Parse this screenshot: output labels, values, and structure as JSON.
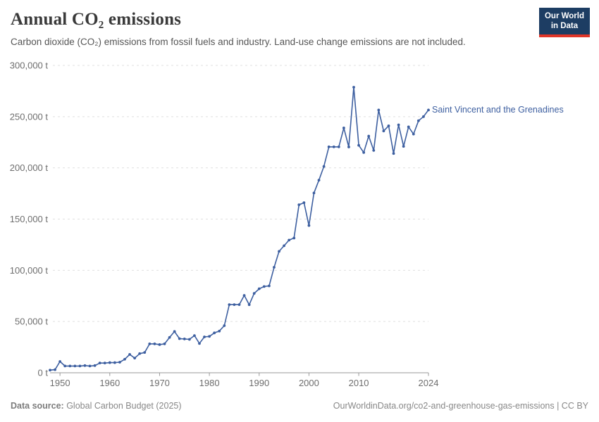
{
  "header": {
    "title": "Annual CO₂ emissions",
    "subtitle": "Carbon dioxide (CO₂) emissions from fossil fuels and industry. Land-use change emissions are not included.",
    "logo_line1": "Our World",
    "logo_line2": "in Data",
    "logo_bg_color": "#1d3d63",
    "logo_bar_color": "#e03629"
  },
  "chart_data": {
    "type": "line",
    "title": "Annual CO₂ emissions",
    "xlabel": "",
    "ylabel": "",
    "unit": "t",
    "grid": true,
    "gridline_style": "dashed",
    "line_color": "#3d5fa0",
    "axis_color": "#9a9a9a",
    "tick_text_color": "#6e6e6e",
    "ylim": [
      0,
      300000
    ],
    "xlim": [
      1948,
      2024
    ],
    "y_ticks": [
      {
        "v": 0,
        "label": "0 t"
      },
      {
        "v": 50000,
        "label": "50,000 t"
      },
      {
        "v": 100000,
        "label": "100,000 t"
      },
      {
        "v": 150000,
        "label": "150,000 t"
      },
      {
        "v": 200000,
        "label": "200,000 t"
      },
      {
        "v": 250000,
        "label": "250,000 t"
      },
      {
        "v": 300000,
        "label": "300,000 t"
      }
    ],
    "x_ticks": [
      {
        "v": 1950,
        "label": "1950"
      },
      {
        "v": 1960,
        "label": "1960"
      },
      {
        "v": 1970,
        "label": "1970"
      },
      {
        "v": 1980,
        "label": "1980"
      },
      {
        "v": 1990,
        "label": "1990"
      },
      {
        "v": 2000,
        "label": "2000"
      },
      {
        "v": 2010,
        "label": "2010"
      },
      {
        "v": 2024,
        "label": "2024"
      }
    ],
    "series": [
      {
        "name": "Saint Vincent and the Grenadines",
        "x": [
          1948,
          1949,
          1950,
          1951,
          1952,
          1953,
          1954,
          1955,
          1956,
          1957,
          1958,
          1959,
          1960,
          1961,
          1962,
          1963,
          1964,
          1965,
          1966,
          1967,
          1968,
          1969,
          1970,
          1971,
          1972,
          1973,
          1974,
          1975,
          1976,
          1977,
          1978,
          1979,
          1980,
          1981,
          1982,
          1983,
          1984,
          1985,
          1986,
          1987,
          1988,
          1989,
          1990,
          1991,
          1992,
          1993,
          1994,
          1995,
          1996,
          1997,
          1998,
          1999,
          2000,
          2001,
          2002,
          2003,
          2004,
          2005,
          2006,
          2007,
          2008,
          2009,
          2010,
          2011,
          2012,
          2013,
          2014,
          2015,
          2016,
          2017,
          2018,
          2019,
          2020,
          2021,
          2022,
          2023,
          2024
        ],
        "values": [
          2600,
          3000,
          11000,
          6600,
          6600,
          6600,
          6600,
          7000,
          6600,
          7000,
          9500,
          9500,
          9900,
          9900,
          10300,
          13200,
          17900,
          14300,
          18700,
          19800,
          28200,
          28200,
          27500,
          28200,
          34500,
          40300,
          33300,
          33000,
          32600,
          36300,
          28600,
          35000,
          35500,
          38900,
          40700,
          46000,
          66500,
          66500,
          66500,
          75500,
          66400,
          77500,
          82000,
          84200,
          84800,
          103000,
          118500,
          124000,
          129500,
          131500,
          164000,
          166000,
          143700,
          175500,
          188000,
          201400,
          220500,
          220500,
          220500,
          239000,
          220400,
          278700,
          222000,
          215000,
          231000,
          217000,
          256500,
          236000,
          241000,
          214000,
          242000,
          221000,
          240000,
          233000,
          246000,
          250000,
          256500
        ]
      }
    ]
  },
  "footer": {
    "source_label": "Data source:",
    "source_value": " Global Carbon Budget (2025)",
    "link": "OurWorldinData.org/co2-and-greenhouse-gas-emissions | CC BY"
  }
}
